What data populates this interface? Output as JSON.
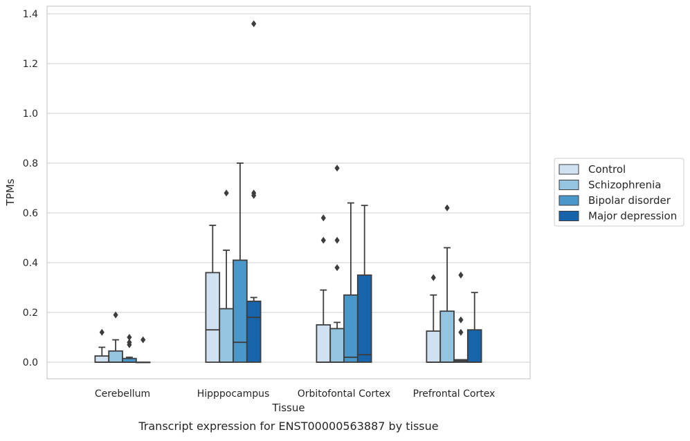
{
  "caption": "Transcript expression for ENST00000563887 by tissue",
  "chart_data": {
    "type": "box",
    "title": "",
    "xlabel": "Tissue",
    "ylabel": "TPMs",
    "ylim": [
      -0.065,
      1.43
    ],
    "yticks": [
      0.0,
      0.2,
      0.4,
      0.6,
      0.8,
      1.0,
      1.2,
      1.4
    ],
    "ytick_labels": [
      "0.0",
      "0.2",
      "0.4",
      "0.6",
      "0.8",
      "1.0",
      "1.2",
      "1.4"
    ],
    "grid": "horizontal",
    "legend_position": "right",
    "categories": [
      "Cerebellum",
      "Hipppocampus",
      "Orbitofontal Cortex",
      "Prefrontal Cortex"
    ],
    "series": [
      {
        "name": "Control",
        "color": "#d0e1f2",
        "boxes": [
          {
            "q1": 0.0,
            "median": 0.0,
            "q3": 0.025,
            "whisker_low": 0.0,
            "whisker_high": 0.06,
            "outliers": [
              0.12
            ]
          },
          {
            "q1": 0.0,
            "median": 0.13,
            "q3": 0.36,
            "whisker_low": 0.0,
            "whisker_high": 0.55,
            "outliers": []
          },
          {
            "q1": 0.0,
            "median": 0.0,
            "q3": 0.15,
            "whisker_low": 0.0,
            "whisker_high": 0.29,
            "outliers": [
              0.49,
              0.58
            ]
          },
          {
            "q1": 0.0,
            "median": 0.0,
            "q3": 0.125,
            "whisker_low": 0.0,
            "whisker_high": 0.27,
            "outliers": [
              0.34
            ]
          }
        ]
      },
      {
        "name": "Schizophrenia",
        "color": "#94c4df",
        "boxes": [
          {
            "q1": 0.0,
            "median": 0.0,
            "q3": 0.045,
            "whisker_low": 0.0,
            "whisker_high": 0.09,
            "outliers": [
              0.19
            ]
          },
          {
            "q1": 0.0,
            "median": 0.0,
            "q3": 0.215,
            "whisker_low": 0.0,
            "whisker_high": 0.45,
            "outliers": [
              0.68
            ]
          },
          {
            "q1": 0.0,
            "median": 0.0,
            "q3": 0.135,
            "whisker_low": 0.0,
            "whisker_high": 0.16,
            "outliers": [
              0.38,
              0.49,
              0.78
            ]
          },
          {
            "q1": 0.0,
            "median": 0.0,
            "q3": 0.205,
            "whisker_low": 0.0,
            "whisker_high": 0.46,
            "outliers": [
              0.62
            ]
          }
        ]
      },
      {
        "name": "Bipolar disorder",
        "color": "#4a98c9",
        "boxes": [
          {
            "q1": 0.0,
            "median": 0.0,
            "q3": 0.015,
            "whisker_low": 0.0,
            "whisker_high": 0.02,
            "outliers": [
              0.07,
              0.08,
              0.1
            ]
          },
          {
            "q1": 0.0,
            "median": 0.08,
            "q3": 0.41,
            "whisker_low": 0.0,
            "whisker_high": 0.8,
            "outliers": []
          },
          {
            "q1": 0.0,
            "median": 0.02,
            "q3": 0.27,
            "whisker_low": 0.0,
            "whisker_high": 0.64,
            "outliers": []
          },
          {
            "q1": 0.0,
            "median": 0.005,
            "q3": 0.01,
            "whisker_low": 0.0,
            "whisker_high": 0.01,
            "outliers": [
              0.12,
              0.17,
              0.35
            ]
          }
        ]
      },
      {
        "name": "Major depression",
        "color": "#1764ab",
        "boxes": [
          {
            "q1": 0.0,
            "median": 0.0,
            "q3": 0.0,
            "whisker_low": 0.0,
            "whisker_high": 0.0,
            "outliers": [
              0.09
            ]
          },
          {
            "q1": 0.0,
            "median": 0.18,
            "q3": 0.245,
            "whisker_low": 0.0,
            "whisker_high": 0.26,
            "outliers": [
              0.67,
              0.68,
              1.36
            ]
          },
          {
            "q1": 0.0,
            "median": 0.03,
            "q3": 0.35,
            "whisker_low": 0.0,
            "whisker_high": 0.63,
            "outliers": []
          },
          {
            "q1": 0.0,
            "median": 0.0,
            "q3": 0.13,
            "whisker_low": 0.0,
            "whisker_high": 0.28,
            "outliers": []
          }
        ]
      }
    ]
  }
}
